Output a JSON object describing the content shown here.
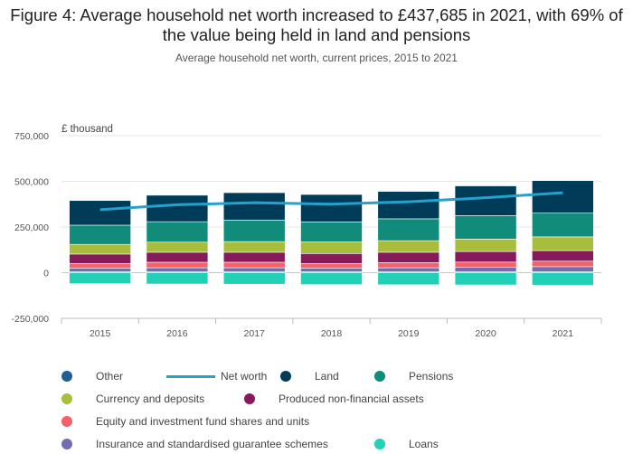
{
  "header": {
    "title": "Figure 4: Average household net worth increased to £437,685 in 2021, with 69% of the value being held in land and pensions",
    "subtitle": "Average household net worth, current prices, 2015 to 2021"
  },
  "chart_data": {
    "type": "bar",
    "stacked": true,
    "categories": [
      "2015",
      "2016",
      "2017",
      "2018",
      "2019",
      "2020",
      "2021"
    ],
    "ylabel": "£ thousand",
    "ylim": [
      -250000,
      750000
    ],
    "yticks": [
      -250000,
      0,
      250000,
      500000,
      750000
    ],
    "ytick_labels": [
      "-250,000",
      "0",
      "250,000",
      "500,000",
      "750,000"
    ],
    "grid": true,
    "legend_position": "bottom",
    "series": [
      {
        "name": "Other",
        "color": "#206095",
        "values": [
          5000,
          5000,
          5000,
          5000,
          5000,
          5000,
          5000
        ]
      },
      {
        "name": "Insurance and standardised guarantee schemes",
        "color": "#746cb1",
        "values": [
          20000,
          22000,
          22000,
          20000,
          22000,
          25000,
          28000
        ]
      },
      {
        "name": "Equity and investment fund shares and units",
        "color": "#f66068",
        "values": [
          25000,
          30000,
          30000,
          25000,
          28000,
          28000,
          30000
        ]
      },
      {
        "name": "Produced non-financial assets",
        "color": "#871a5b",
        "values": [
          52000,
          55000,
          55000,
          55000,
          57000,
          58000,
          58000
        ]
      },
      {
        "name": "Currency and deposits",
        "color": "#a8bd3a",
        "values": [
          53000,
          55000,
          58000,
          63000,
          63000,
          68000,
          75000
        ]
      },
      {
        "name": "Pensions",
        "color": "#118c7b",
        "values": [
          105000,
          112000,
          118000,
          110000,
          120000,
          128000,
          130000
        ]
      },
      {
        "name": "Land",
        "color": "#003c57",
        "values": [
          135000,
          145000,
          150000,
          150000,
          150000,
          163000,
          178000
        ]
      },
      {
        "name": "Loans",
        "color": "#22d0b6",
        "values": [
          -60000,
          -62000,
          -63000,
          -65000,
          -66000,
          -67000,
          -68000
        ]
      }
    ],
    "line": {
      "name": "Net worth",
      "color": "#27a0cc",
      "values": [
        345000,
        372000,
        383000,
        375000,
        388000,
        410000,
        437685
      ]
    }
  },
  "legend": {
    "items": [
      {
        "name": "Other",
        "color": "#206095",
        "shape": "dot"
      },
      {
        "name": "Net worth",
        "color": "#27a0cc",
        "shape": "line"
      },
      {
        "name": "Land",
        "color": "#003c57",
        "shape": "dot"
      },
      {
        "name": "Pensions",
        "color": "#118c7b",
        "shape": "dot"
      },
      {
        "name": "Currency and deposits",
        "color": "#a8bd3a",
        "shape": "dot"
      },
      {
        "name": "Produced non-financial assets",
        "color": "#871a5b",
        "shape": "dot"
      },
      {
        "name": "Equity and investment fund shares and units",
        "color": "#f66068",
        "shape": "dot"
      },
      {
        "name": "Insurance and standardised guarantee schemes",
        "color": "#746cb1",
        "shape": "dot"
      },
      {
        "name": "Loans",
        "color": "#22d0b6",
        "shape": "dot"
      }
    ]
  }
}
